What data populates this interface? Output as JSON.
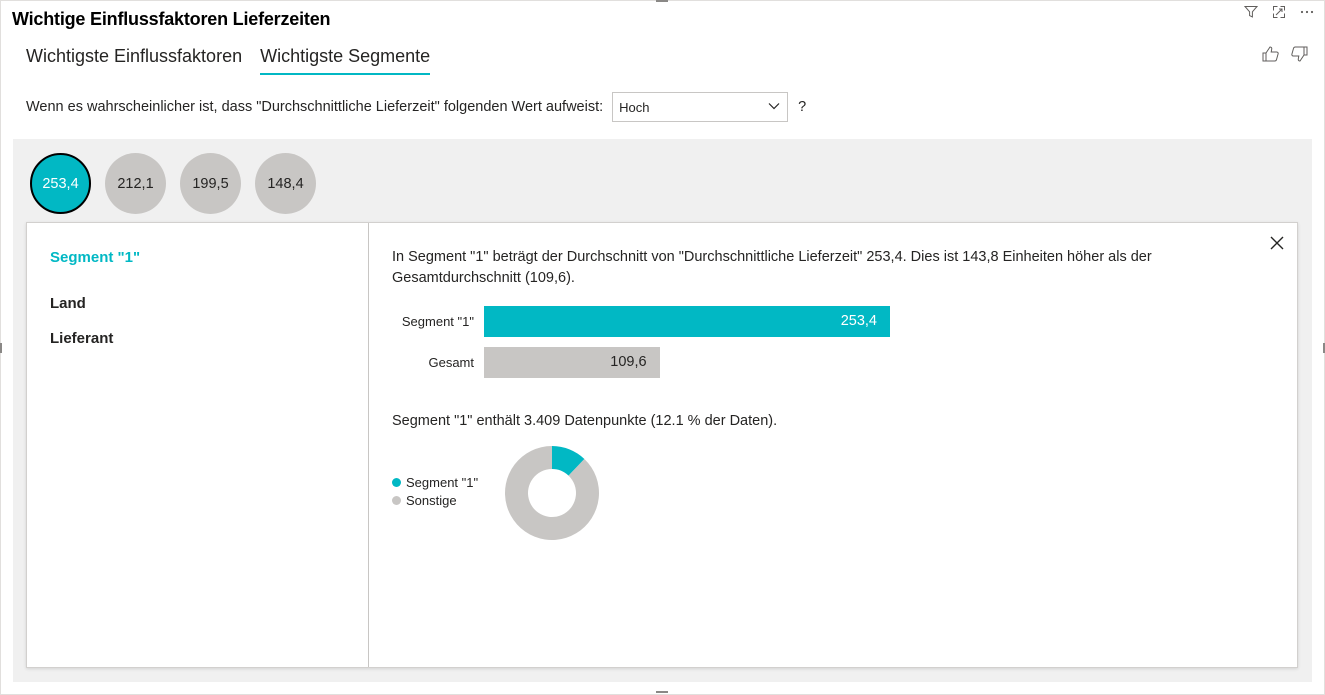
{
  "title": "Wichtige Einflussfaktoren Lieferzeiten",
  "icons": [
    "filter-icon",
    "focus-mode-icon",
    "more-options-icon",
    "thumbs-up-icon",
    "thumbs-down-icon",
    "close-icon",
    "chevron-down-icon"
  ],
  "tabs": [
    {
      "label": "Wichtigste Einflussfaktoren",
      "active": false
    },
    {
      "label": "Wichtigste Segmente",
      "active": true
    }
  ],
  "question": {
    "text": "Wenn es wahrscheinlicher ist, dass \"Durchschnittliche Lieferzeit\" folgenden Wert aufweist:",
    "selected": "Hoch",
    "help": "?"
  },
  "segments": [
    {
      "value": "253,4",
      "active": true
    },
    {
      "value": "212,1",
      "active": false
    },
    {
      "value": "199,5",
      "active": false
    },
    {
      "value": "148,4",
      "active": false
    }
  ],
  "detail": {
    "left_items": [
      {
        "label": "Segment \"1\"",
        "active": true
      },
      {
        "label": "Land",
        "active": false
      },
      {
        "label": "Lieferant",
        "active": false
      }
    ],
    "description": "In Segment \"1\" beträgt der Durchschnitt von \"Durchschnittliche Lieferzeit\" 253,4. Dies ist 143,8 Einheiten höher als der Gesamtdurchschnitt (109,6).",
    "count_text": "Segment \"1\" enthält 3.409 Datenpunkte (12.1 % der Daten)."
  },
  "chart_data": [
    {
      "type": "bar",
      "orientation": "horizontal",
      "categories": [
        "Segment \"1\"",
        "Gesamt"
      ],
      "values": [
        253.4,
        109.6
      ],
      "value_labels": [
        "253,4",
        "109,6"
      ],
      "colors": [
        "#01b8c4",
        "#c8c6c4"
      ]
    },
    {
      "type": "pie",
      "donut": true,
      "labels": [
        "Segment \"1\"",
        "Sonstige"
      ],
      "values": [
        12.1,
        87.9
      ],
      "colors": [
        "#01b8c4",
        "#c8c6c4"
      ]
    }
  ],
  "colors": {
    "accent": "#01b8c4",
    "neutral": "#c8c6c4"
  }
}
